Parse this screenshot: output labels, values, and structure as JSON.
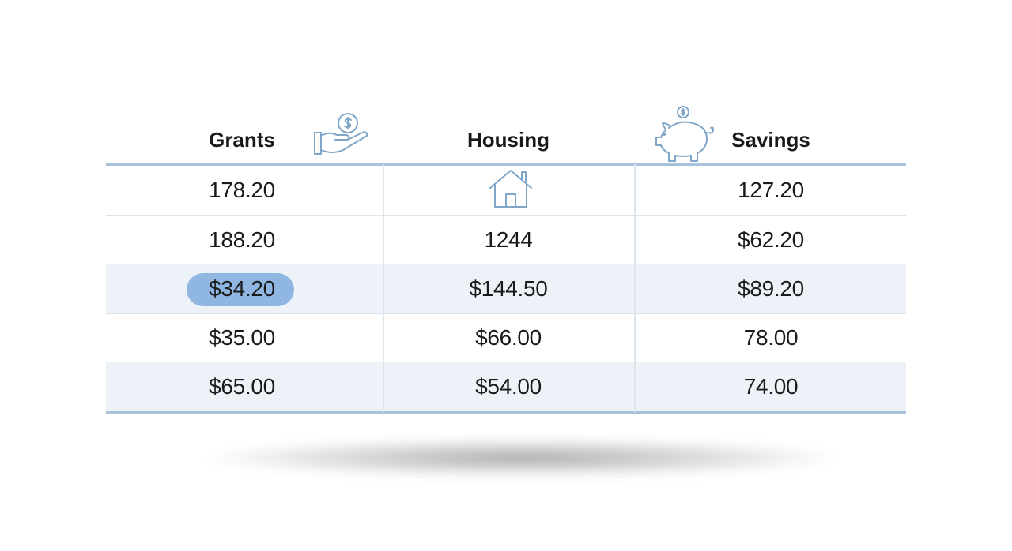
{
  "table": {
    "columns": [
      {
        "header": "Grants",
        "cells": [
          "178.20",
          "188.20",
          "$34.20",
          "$35.00",
          "$65.00"
        ]
      },
      {
        "header": "Housing",
        "cells": [
          null,
          "1244",
          "$144.50",
          "$66.00",
          "$54.00"
        ]
      },
      {
        "header": "Savings",
        "cells": [
          "127.20",
          "$62.20",
          "$89.20",
          "78.00",
          "74.00"
        ]
      }
    ]
  }
}
